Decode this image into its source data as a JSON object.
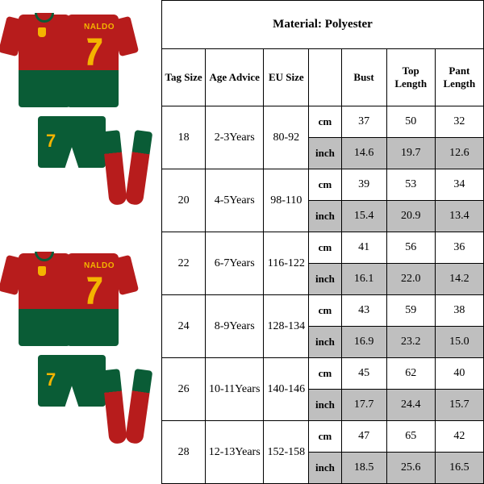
{
  "product": {
    "player_name": "RONALDO",
    "player_number": "7",
    "colors": {
      "primary": "#b71c1c",
      "secondary": "#0a5c36",
      "accent": "#f4b400"
    }
  },
  "table": {
    "material_label": "Material: Polyester",
    "headers": {
      "tag_size": "Tag Size",
      "age_advice": "Age Advice",
      "eu_size": "EU Size",
      "bust": "Bust",
      "top_length": "Top Length",
      "pant_length": "Pant Length"
    },
    "units": {
      "cm": "cm",
      "inch": "inch"
    },
    "styling": {
      "border_color": "#000000",
      "shaded_bg": "#bfbfbf",
      "header_fontsize": 13,
      "body_fontsize": 14
    },
    "rows": [
      {
        "tag": "18",
        "age": "2-3Years",
        "eu": "80-92",
        "cm": {
          "bust": "37",
          "top": "50",
          "pant": "32"
        },
        "inch": {
          "bust": "14.6",
          "top": "19.7",
          "pant": "12.6"
        }
      },
      {
        "tag": "20",
        "age": "4-5Years",
        "eu": "98-110",
        "cm": {
          "bust": "39",
          "top": "53",
          "pant": "34"
        },
        "inch": {
          "bust": "15.4",
          "top": "20.9",
          "pant": "13.4"
        }
      },
      {
        "tag": "22",
        "age": "6-7Years",
        "eu": "116-122",
        "cm": {
          "bust": "41",
          "top": "56",
          "pant": "36"
        },
        "inch": {
          "bust": "16.1",
          "top": "22.0",
          "pant": "14.2"
        }
      },
      {
        "tag": "24",
        "age": "8-9Years",
        "eu": "128-134",
        "cm": {
          "bust": "43",
          "top": "59",
          "pant": "38"
        },
        "inch": {
          "bust": "16.9",
          "top": "23.2",
          "pant": "15.0"
        }
      },
      {
        "tag": "26",
        "age": "10-11Years",
        "eu": "140-146",
        "cm": {
          "bust": "45",
          "top": "62",
          "pant": "40"
        },
        "inch": {
          "bust": "17.7",
          "top": "24.4",
          "pant": "15.7"
        }
      },
      {
        "tag": "28",
        "age": "12-13Years",
        "eu": "152-158",
        "cm": {
          "bust": "47",
          "top": "65",
          "pant": "42"
        },
        "inch": {
          "bust": "18.5",
          "top": "25.6",
          "pant": "16.5"
        }
      }
    ]
  }
}
